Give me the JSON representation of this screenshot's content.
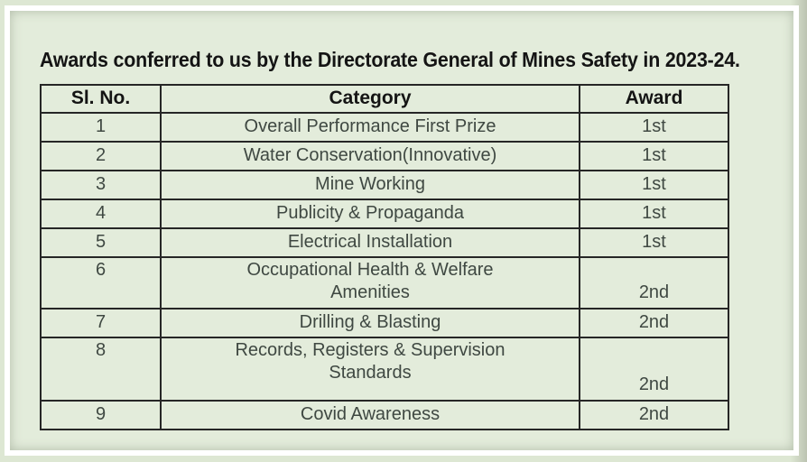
{
  "title": "Awards conferred to us by the Directorate General of Mines Safety in 2023-24.",
  "table": {
    "columns": [
      "Sl. No.",
      "Category",
      "Award"
    ],
    "rows": [
      {
        "sl_no": "1",
        "category": "Overall Performance First Prize",
        "award": "1st"
      },
      {
        "sl_no": "2",
        "category": "Water Conservation(Innovative)",
        "award": "1st"
      },
      {
        "sl_no": "3",
        "category": "Mine Working",
        "award": "1st"
      },
      {
        "sl_no": "4",
        "category": "Publicity & Propaganda",
        "award": "1st"
      },
      {
        "sl_no": "5",
        "category": "Electrical Installation",
        "award": "1st"
      },
      {
        "sl_no": "6",
        "category": "Occupational Health & Welfare\nAmenities",
        "award": "2nd"
      },
      {
        "sl_no": "7",
        "category": "Drilling & Blasting",
        "award": "2nd"
      },
      {
        "sl_no": "8",
        "category": "Records, Registers & Supervision\nStandards",
        "award": "2nd"
      },
      {
        "sl_no": "9",
        "category": "Covid Awareness",
        "award": "2nd"
      }
    ]
  },
  "colors": {
    "page_background": "#dde7d3",
    "panel_background": "#e3ecdb",
    "frame_border": "#ffffff",
    "table_border": "#262626",
    "heading_text": "#141414",
    "body_text": "#3f4842"
  }
}
